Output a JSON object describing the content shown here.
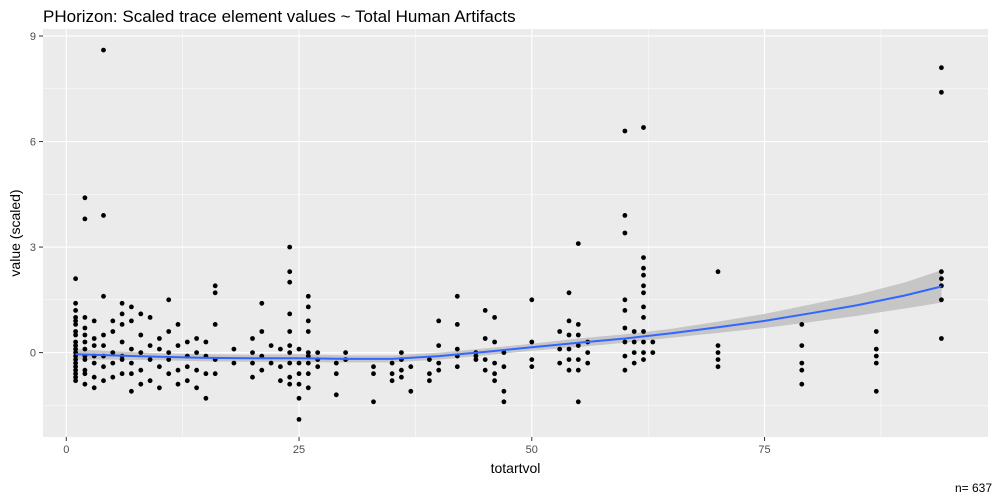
{
  "chart_data": {
    "type": "scatter",
    "title": "PHorizon: Scaled trace element values ~ Total Human Artifacts",
    "xlabel": "totartvol",
    "ylabel": "value (scaled)",
    "caption": "n= 637",
    "xlim": [
      -2.5,
      99
    ],
    "ylim": [
      -2.4,
      9.2
    ],
    "x_ticks": [
      0,
      25,
      50,
      75
    ],
    "y_ticks": [
      0,
      3,
      6,
      9
    ],
    "grid": true,
    "colors": {
      "panel": "#ebebeb",
      "grid": "#ffffff",
      "points": "#000000",
      "smooth_line": "#3366ff",
      "ribbon": "#bfbfbf"
    },
    "points": [
      [
        1,
        -0.1
      ],
      [
        1,
        0.3
      ],
      [
        1,
        -0.6
      ],
      [
        1,
        2.1
      ],
      [
        1,
        1.4
      ],
      [
        1,
        1.2
      ],
      [
        1,
        0.9
      ],
      [
        1,
        0.6
      ],
      [
        1,
        0.2
      ],
      [
        1,
        -0.3
      ],
      [
        1,
        -0.5
      ],
      [
        1,
        -0.8
      ],
      [
        1,
        0.8
      ],
      [
        1,
        0.5
      ],
      [
        1,
        1.0
      ],
      [
        1,
        -0.2
      ],
      [
        1,
        0.0
      ],
      [
        1,
        0.1
      ],
      [
        1,
        -0.4
      ],
      [
        1,
        -0.7
      ],
      [
        2,
        4.4
      ],
      [
        2,
        3.8
      ],
      [
        2,
        1.0
      ],
      [
        2,
        0.5
      ],
      [
        2,
        0.1
      ],
      [
        2,
        -0.2
      ],
      [
        2,
        -0.5
      ],
      [
        2,
        -0.9
      ],
      [
        2,
        0.7
      ],
      [
        2,
        -0.1
      ],
      [
        2,
        -0.6
      ],
      [
        2,
        0.3
      ],
      [
        3,
        -0.1
      ],
      [
        3,
        0.4
      ],
      [
        3,
        -0.7
      ],
      [
        3,
        -1.0
      ],
      [
        3,
        0.2
      ],
      [
        3,
        -0.3
      ],
      [
        3,
        0.9
      ],
      [
        4,
        8.6
      ],
      [
        4,
        3.9
      ],
      [
        4,
        1.6
      ],
      [
        4,
        0.2
      ],
      [
        4,
        -0.4
      ],
      [
        4,
        -0.8
      ],
      [
        4,
        0.5
      ],
      [
        4,
        -0.1
      ],
      [
        5,
        0.6
      ],
      [
        5,
        -0.3
      ],
      [
        5,
        -0.7
      ],
      [
        5,
        0.0
      ],
      [
        5,
        0.9
      ],
      [
        6,
        1.1
      ],
      [
        6,
        1.4
      ],
      [
        6,
        0.8
      ],
      [
        6,
        -0.2
      ],
      [
        6,
        -0.6
      ],
      [
        6,
        0.3
      ],
      [
        6,
        -0.1
      ],
      [
        7,
        1.3
      ],
      [
        7,
        0.9
      ],
      [
        7,
        -0.6
      ],
      [
        7,
        -1.1
      ],
      [
        7,
        0.1
      ],
      [
        7,
        -0.3
      ],
      [
        8,
        1.1
      ],
      [
        8,
        0.5
      ],
      [
        8,
        0.0
      ],
      [
        8,
        -0.5
      ],
      [
        8,
        -0.9
      ],
      [
        9,
        1.0
      ],
      [
        9,
        0.2
      ],
      [
        9,
        -0.2
      ],
      [
        9,
        -0.8
      ],
      [
        10,
        -0.4
      ],
      [
        10,
        0.1
      ],
      [
        10,
        -1.0
      ],
      [
        10,
        0.4
      ],
      [
        11,
        1.5
      ],
      [
        11,
        0.6
      ],
      [
        11,
        -0.2
      ],
      [
        11,
        -0.6
      ],
      [
        11,
        0.0
      ],
      [
        12,
        0.2
      ],
      [
        12,
        -0.5
      ],
      [
        12,
        -0.9
      ],
      [
        12,
        0.8
      ],
      [
        13,
        -0.4
      ],
      [
        13,
        -0.1
      ],
      [
        13,
        -0.8
      ],
      [
        13,
        0.3
      ],
      [
        14,
        0.4
      ],
      [
        14,
        -0.5
      ],
      [
        14,
        -1.0
      ],
      [
        14,
        0.0
      ],
      [
        15,
        -0.6
      ],
      [
        15,
        -1.3
      ],
      [
        15,
        0.3
      ],
      [
        15,
        -0.1
      ],
      [
        16,
        1.9
      ],
      [
        16,
        1.7
      ],
      [
        16,
        0.8
      ],
      [
        16,
        -0.6
      ],
      [
        16,
        -0.2
      ],
      [
        18,
        0.1
      ],
      [
        18,
        -0.3
      ],
      [
        20,
        0.4
      ],
      [
        20,
        -0.3
      ],
      [
        20,
        -0.7
      ],
      [
        20,
        0.0
      ],
      [
        21,
        1.4
      ],
      [
        21,
        0.6
      ],
      [
        21,
        -0.1
      ],
      [
        21,
        -0.5
      ],
      [
        22,
        -0.3
      ],
      [
        22,
        0.2
      ],
      [
        23,
        -0.4
      ],
      [
        23,
        -0.8
      ],
      [
        23,
        0.1
      ],
      [
        24,
        3.0
      ],
      [
        24,
        2.3
      ],
      [
        24,
        2.0
      ],
      [
        24,
        1.1
      ],
      [
        24,
        0.6
      ],
      [
        24,
        0.2
      ],
      [
        24,
        -0.3
      ],
      [
        24,
        -0.7
      ],
      [
        24,
        -0.9
      ],
      [
        24,
        0.0
      ],
      [
        25,
        -1.9
      ],
      [
        25,
        -1.3
      ],
      [
        25,
        -0.9
      ],
      [
        25,
        -0.3
      ],
      [
        25,
        0.1
      ],
      [
        25,
        -0.6
      ],
      [
        26,
        1.6
      ],
      [
        26,
        1.3
      ],
      [
        26,
        0.9
      ],
      [
        26,
        0.6
      ],
      [
        26,
        0.0
      ],
      [
        26,
        -0.3
      ],
      [
        26,
        -0.6
      ],
      [
        26,
        -1.0
      ],
      [
        26,
        -0.1
      ],
      [
        27,
        -0.4
      ],
      [
        27,
        0.0
      ],
      [
        27,
        -0.2
      ],
      [
        29,
        -1.2
      ],
      [
        29,
        -0.6
      ],
      [
        29,
        -0.3
      ],
      [
        30,
        0.0
      ],
      [
        30,
        -0.2
      ],
      [
        33,
        -1.4
      ],
      [
        33,
        -0.6
      ],
      [
        33,
        -0.4
      ],
      [
        35,
        -0.3
      ],
      [
        35,
        -0.6
      ],
      [
        35,
        -0.8
      ],
      [
        36,
        0.0
      ],
      [
        36,
        -0.5
      ],
      [
        36,
        -0.7
      ],
      [
        36,
        -0.2
      ],
      [
        37,
        -1.1
      ],
      [
        37,
        -0.4
      ],
      [
        39,
        -0.6
      ],
      [
        39,
        -0.8
      ],
      [
        39,
        -0.2
      ],
      [
        40,
        0.9
      ],
      [
        40,
        0.2
      ],
      [
        40,
        -0.3
      ],
      [
        40,
        -0.5
      ],
      [
        42,
        1.6
      ],
      [
        42,
        0.8
      ],
      [
        42,
        0.1
      ],
      [
        42,
        -0.4
      ],
      [
        42,
        -0.1
      ],
      [
        44,
        -0.2
      ],
      [
        44,
        0.0
      ],
      [
        44,
        -0.1
      ],
      [
        45,
        1.2
      ],
      [
        45,
        0.4
      ],
      [
        45,
        -0.2
      ],
      [
        45,
        -0.5
      ],
      [
        46,
        1.0
      ],
      [
        46,
        0.3
      ],
      [
        46,
        -0.3
      ],
      [
        46,
        -0.6
      ],
      [
        46,
        -0.8
      ],
      [
        47,
        -1.4
      ],
      [
        47,
        -1.1
      ],
      [
        47,
        -0.4
      ],
      [
        47,
        0.0
      ],
      [
        50,
        1.5
      ],
      [
        50,
        0.3
      ],
      [
        50,
        -0.2
      ],
      [
        50,
        -0.4
      ],
      [
        53,
        0.6
      ],
      [
        53,
        0.1
      ],
      [
        53,
        -0.3
      ],
      [
        54,
        1.7
      ],
      [
        54,
        0.9
      ],
      [
        54,
        0.5
      ],
      [
        54,
        0.1
      ],
      [
        54,
        -0.2
      ],
      [
        54,
        -0.5
      ],
      [
        55,
        3.1
      ],
      [
        55,
        -1.4
      ],
      [
        55,
        -0.5
      ],
      [
        55,
        -0.2
      ],
      [
        55,
        0.2
      ],
      [
        55,
        0.5
      ],
      [
        55,
        0.8
      ],
      [
        56,
        0.3
      ],
      [
        56,
        0.0
      ],
      [
        56,
        -0.3
      ],
      [
        60,
        6.3
      ],
      [
        60,
        3.9
      ],
      [
        60,
        3.4
      ],
      [
        60,
        1.5
      ],
      [
        60,
        1.2
      ],
      [
        60,
        0.7
      ],
      [
        60,
        0.3
      ],
      [
        60,
        -0.1
      ],
      [
        60,
        -0.5
      ],
      [
        61,
        0.6
      ],
      [
        61,
        0.3
      ],
      [
        61,
        0.0
      ],
      [
        61,
        -0.3
      ],
      [
        62,
        6.4
      ],
      [
        62,
        2.7
      ],
      [
        62,
        2.4
      ],
      [
        62,
        2.2
      ],
      [
        62,
        1.9
      ],
      [
        62,
        1.7
      ],
      [
        62,
        1.3
      ],
      [
        62,
        1.0
      ],
      [
        62,
        0.6
      ],
      [
        62,
        0.3
      ],
      [
        62,
        0.0
      ],
      [
        62,
        -0.2
      ],
      [
        63,
        0.3
      ],
      [
        63,
        0.0
      ],
      [
        70,
        2.3
      ],
      [
        70,
        0.2
      ],
      [
        70,
        0.0
      ],
      [
        70,
        -0.2
      ],
      [
        70,
        -0.4
      ],
      [
        79,
        0.8
      ],
      [
        79,
        0.2
      ],
      [
        79,
        -0.3
      ],
      [
        79,
        -0.5
      ],
      [
        79,
        -0.9
      ],
      [
        87,
        0.6
      ],
      [
        87,
        0.1
      ],
      [
        87,
        -0.1
      ],
      [
        87,
        -0.3
      ],
      [
        87,
        -1.1
      ],
      [
        94,
        8.1
      ],
      [
        94,
        7.4
      ],
      [
        94,
        2.3
      ],
      [
        94,
        2.1
      ],
      [
        94,
        1.9
      ],
      [
        94,
        1.5
      ],
      [
        94,
        0.4
      ]
    ],
    "smooth": {
      "x": [
        1,
        5,
        10,
        15,
        20,
        25,
        30,
        35,
        40,
        45,
        50,
        55,
        60,
        65,
        70,
        75,
        80,
        85,
        90,
        94
      ],
      "y": [
        -0.05,
        -0.08,
        -0.12,
        -0.15,
        -0.16,
        -0.16,
        -0.18,
        -0.18,
        -0.1,
        0.02,
        0.15,
        0.28,
        0.4,
        0.55,
        0.72,
        0.9,
        1.12,
        1.35,
        1.62,
        1.88
      ],
      "lower": [
        -0.2,
        -0.2,
        -0.22,
        -0.25,
        -0.26,
        -0.27,
        -0.28,
        -0.28,
        -0.2,
        -0.08,
        0.05,
        0.16,
        0.28,
        0.42,
        0.56,
        0.7,
        0.87,
        1.05,
        1.25,
        1.42
      ],
      "upper": [
        0.1,
        0.04,
        -0.02,
        -0.05,
        -0.06,
        -0.05,
        -0.08,
        -0.08,
        0.0,
        0.12,
        0.25,
        0.4,
        0.52,
        0.68,
        0.88,
        1.1,
        1.37,
        1.65,
        1.99,
        2.34
      ]
    }
  }
}
